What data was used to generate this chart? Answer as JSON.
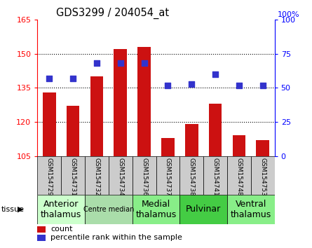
{
  "title": "GDS3299 / 204054_at",
  "samples": [
    "GSM154729",
    "GSM154731",
    "GSM154732",
    "GSM154734",
    "GSM154736",
    "GSM154737",
    "GSM154738",
    "GSM154741",
    "GSM154748",
    "GSM154753"
  ],
  "counts": [
    133,
    127,
    140,
    152,
    153,
    113,
    119,
    128,
    114,
    112
  ],
  "percentile": [
    57,
    57,
    68,
    68,
    68,
    52,
    53,
    60,
    52,
    52
  ],
  "ylim_left": [
    105,
    165
  ],
  "ylim_right": [
    0,
    100
  ],
  "yticks_left": [
    105,
    120,
    135,
    150,
    165
  ],
  "yticks_right": [
    0,
    25,
    50,
    75,
    100
  ],
  "bar_color": "#cc1111",
  "dot_color": "#3333cc",
  "background_plot": "#ffffff",
  "sample_box_color": "#cccccc",
  "tissue_groups": [
    {
      "label": "Anterior\nthalamus",
      "start": 0,
      "end": 1,
      "color": "#ccffcc",
      "fontsize": 9
    },
    {
      "label": "Centre median",
      "start": 2,
      "end": 3,
      "color": "#aaddaa",
      "fontsize": 7
    },
    {
      "label": "Medial\nthalamus",
      "start": 4,
      "end": 5,
      "color": "#88ee88",
      "fontsize": 9
    },
    {
      "label": "Pulvinar",
      "start": 6,
      "end": 7,
      "color": "#44cc44",
      "fontsize": 9
    },
    {
      "label": "Ventral\nthalamus",
      "start": 8,
      "end": 9,
      "color": "#88ee88",
      "fontsize": 9
    }
  ],
  "bar_width": 0.55,
  "dot_size": 28
}
